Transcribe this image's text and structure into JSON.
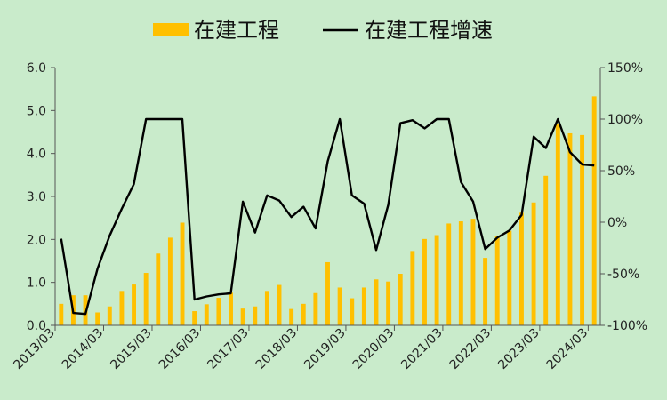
{
  "chart_data": {
    "type": "bar+line",
    "legend": {
      "placement": "top-center",
      "items": [
        {
          "label": "在建工程",
          "kind": "bar",
          "color": "#ffc000"
        },
        {
          "label": "在建工程增速",
          "kind": "line",
          "color": "#000000"
        }
      ]
    },
    "colors": {
      "background": "#c9ebcb",
      "bar": "#ffc000",
      "line": "#000000",
      "axis": "#555555"
    },
    "x_tick_labels": [
      "2013/03",
      "2014/03",
      "2015/03",
      "2016/03",
      "2017/03",
      "2018/03",
      "2019/03",
      "2020/03",
      "2021/03",
      "2022/03",
      "2023/03",
      "2024/03"
    ],
    "left_axis": {
      "range": [
        0,
        6
      ],
      "ticks": [
        "0.0",
        "1.0",
        "2.0",
        "3.0",
        "4.0",
        "5.0",
        "6.0"
      ]
    },
    "right_axis": {
      "range": [
        -100,
        150
      ],
      "unit": "%",
      "ticks": [
        "-100%",
        "-50%",
        "0%",
        "50%",
        "100%",
        "150%"
      ]
    },
    "grid": false,
    "quarters": [
      "2013Q1",
      "2013Q2",
      "2013Q3",
      "2013Q4",
      "2014Q1",
      "2014Q2",
      "2014Q3",
      "2014Q4",
      "2015Q1",
      "2015Q2",
      "2015Q3",
      "2015Q4",
      "2016Q1",
      "2016Q2",
      "2016Q3",
      "2016Q4",
      "2017Q1",
      "2017Q2",
      "2017Q3",
      "2017Q4",
      "2018Q1",
      "2018Q2",
      "2018Q3",
      "2018Q4",
      "2019Q1",
      "2019Q2",
      "2019Q3",
      "2019Q4",
      "2020Q1",
      "2020Q2",
      "2020Q3",
      "2020Q4",
      "2021Q1",
      "2021Q2",
      "2021Q3",
      "2021Q4",
      "2022Q1",
      "2022Q2",
      "2022Q3",
      "2022Q4",
      "2023Q1",
      "2023Q2",
      "2023Q3",
      "2023Q4",
      "2024Q1"
    ],
    "series": [
      {
        "name": "在建工程",
        "type": "bar",
        "axis": "left",
        "values": [
          0.5,
          0.7,
          0.7,
          0.3,
          0.44,
          0.8,
          0.95,
          1.22,
          1.67,
          2.04,
          2.39,
          0.33,
          0.49,
          0.64,
          0.76,
          0.39,
          0.44,
          0.8,
          0.94,
          0.38,
          0.5,
          0.75,
          1.47,
          0.88,
          0.63,
          0.88,
          1.07,
          1.02,
          1.2,
          1.73,
          2.01,
          2.1,
          2.37,
          2.42,
          2.48,
          1.57,
          2.07,
          2.2,
          2.62,
          2.86,
          3.48,
          4.7,
          4.47,
          4.43,
          5.33
        ]
      },
      {
        "name": "在建工程增速",
        "type": "line",
        "axis": "right",
        "values": [
          -16,
          -88,
          -89,
          -45,
          -13,
          13,
          37,
          100,
          100,
          100,
          100,
          -75,
          -72,
          -70,
          -69,
          20,
          -10,
          26,
          21,
          5,
          15,
          -6,
          59,
          100,
          26,
          18,
          -27,
          17,
          96,
          99,
          91,
          100,
          100,
          39,
          20,
          -26,
          -15,
          -8,
          7,
          83,
          72,
          100,
          68,
          56,
          55
        ]
      }
    ]
  }
}
